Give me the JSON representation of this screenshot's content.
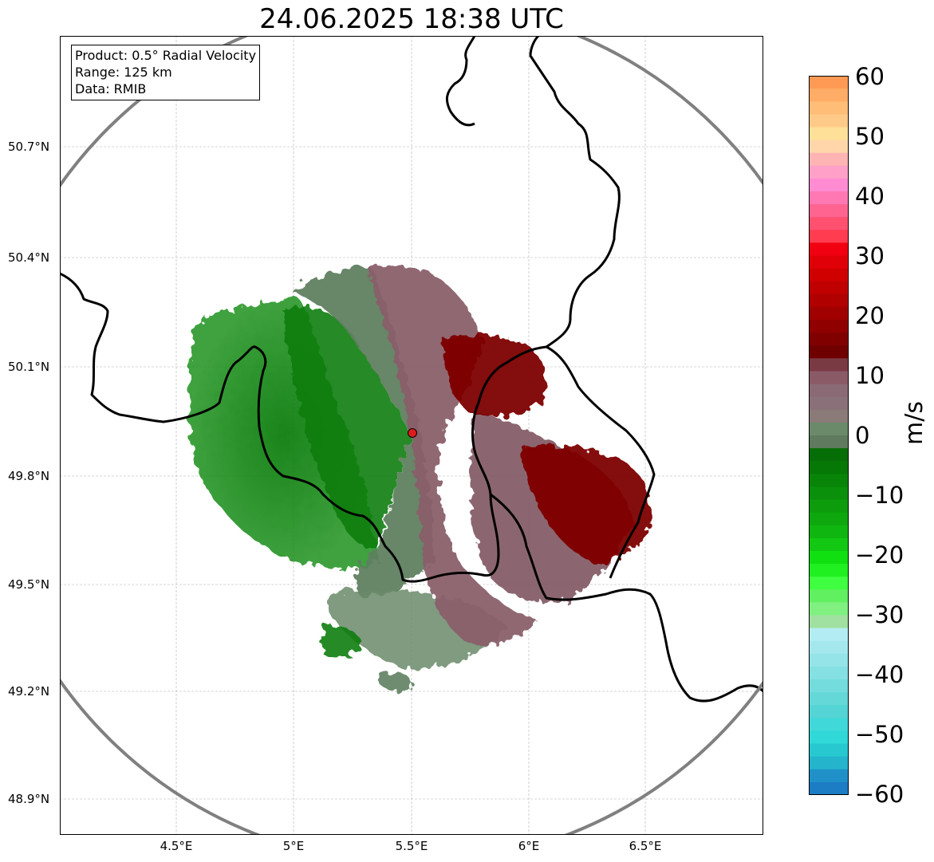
{
  "title": "24.06.2025 18:38 UTC",
  "info": {
    "product": "Product: 0.5° Radial Velocity",
    "range": "Range: 125 km",
    "source": "Data: RMIB"
  },
  "axes": {
    "x_ticks": [
      "4.5°E",
      "5°E",
      "5.5°E",
      "6°E",
      "6.5°E"
    ],
    "y_ticks": [
      "50.7°N",
      "50.4°N",
      "50.1°N",
      "49.8°N",
      "49.5°N",
      "49.2°N",
      "48.9°N"
    ],
    "x_range": [
      4.0,
      7.0
    ],
    "y_range": [
      48.8,
      50.99
    ],
    "grid": true
  },
  "radar_site": {
    "lon": 5.505,
    "lat": 49.914
  },
  "range_ring_km": 125,
  "colorbar": {
    "label": "m/s",
    "ticks": [
      "60",
      "50",
      "40",
      "30",
      "20",
      "10",
      "0",
      "−10",
      "−20",
      "−30",
      "−40",
      "−50",
      "−60"
    ],
    "min": -60,
    "max": 60
  },
  "colors": {
    "ring": "#808080",
    "border": "#000000",
    "site": "#dd1c1c",
    "inbound_strong": "#0a7d0a",
    "inbound_weak": "#5f8060",
    "outbound_weak": "#8a5f6a",
    "outbound_strong": "#7d0000"
  }
}
